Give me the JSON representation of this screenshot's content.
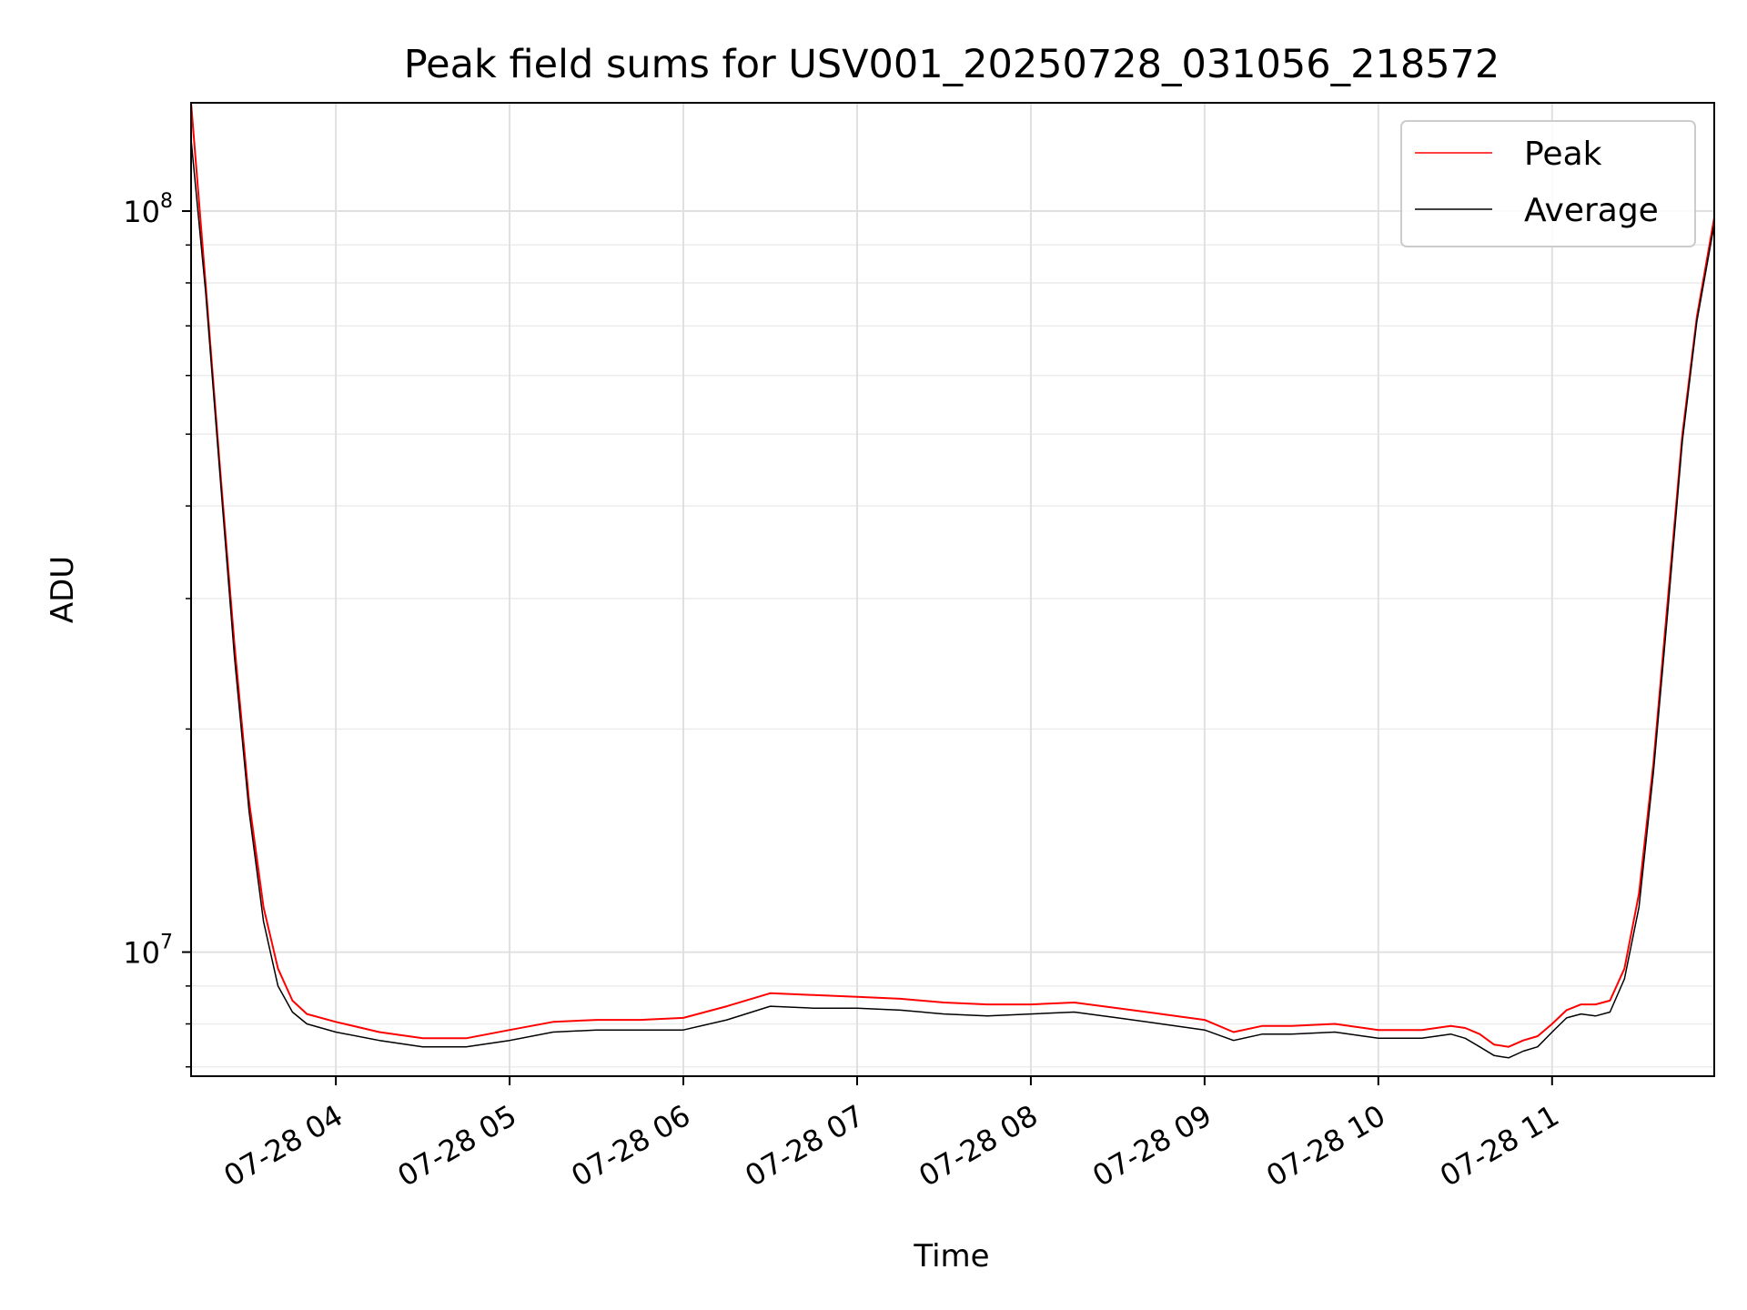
{
  "chart_data": {
    "type": "line",
    "title": "Peak field sums for USV001_20250728_031056_218572",
    "xlabel": "Time",
    "ylabel": "ADU",
    "yscale": "log",
    "grid": true,
    "legend_position": "top-right",
    "xlim": [
      "2025-07-28 03:10",
      "2025-07-28 11:56"
    ],
    "ylim": [
      6800000,
      140000000
    ],
    "x_ticks": [
      {
        "value": "2025-07-28 04:00",
        "label": "07-28 04"
      },
      {
        "value": "2025-07-28 05:00",
        "label": "07-28 05"
      },
      {
        "value": "2025-07-28 06:00",
        "label": "07-28 06"
      },
      {
        "value": "2025-07-28 07:00",
        "label": "07-28 07"
      },
      {
        "value": "2025-07-28 08:00",
        "label": "07-28 08"
      },
      {
        "value": "2025-07-28 09:00",
        "label": "07-28 09"
      },
      {
        "value": "2025-07-28 10:00",
        "label": "07-28 10"
      },
      {
        "value": "2025-07-28 11:00",
        "label": "07-28 11"
      }
    ],
    "y_ticks": [
      {
        "value": 10000000,
        "base": "10",
        "exp": "7"
      },
      {
        "value": 100000000,
        "base": "10",
        "exp": "8"
      }
    ],
    "series": [
      {
        "name": "Peak",
        "color": "#ff0000",
        "x": [
          "2025-07-28 03:10",
          "2025-07-28 03:15",
          "2025-07-28 03:20",
          "2025-07-28 03:25",
          "2025-07-28 03:30",
          "2025-07-28 03:35",
          "2025-07-28 03:40",
          "2025-07-28 03:45",
          "2025-07-28 03:50",
          "2025-07-28 04:00",
          "2025-07-28 04:15",
          "2025-07-28 04:30",
          "2025-07-28 04:45",
          "2025-07-28 05:00",
          "2025-07-28 05:15",
          "2025-07-28 05:30",
          "2025-07-28 05:45",
          "2025-07-28 06:00",
          "2025-07-28 06:15",
          "2025-07-28 06:30",
          "2025-07-28 06:45",
          "2025-07-28 07:00",
          "2025-07-28 07:15",
          "2025-07-28 07:30",
          "2025-07-28 07:45",
          "2025-07-28 08:00",
          "2025-07-28 08:15",
          "2025-07-28 08:30",
          "2025-07-28 08:45",
          "2025-07-28 09:00",
          "2025-07-28 09:10",
          "2025-07-28 09:20",
          "2025-07-28 09:30",
          "2025-07-28 09:45",
          "2025-07-28 10:00",
          "2025-07-28 10:15",
          "2025-07-28 10:25",
          "2025-07-28 10:30",
          "2025-07-28 10:35",
          "2025-07-28 10:40",
          "2025-07-28 10:45",
          "2025-07-28 10:50",
          "2025-07-28 10:55",
          "2025-07-28 11:00",
          "2025-07-28 11:05",
          "2025-07-28 11:10",
          "2025-07-28 11:15",
          "2025-07-28 11:20",
          "2025-07-28 11:25",
          "2025-07-28 11:30",
          "2025-07-28 11:35",
          "2025-07-28 11:40",
          "2025-07-28 11:45",
          "2025-07-28 11:50",
          "2025-07-28 11:56"
        ],
        "y": [
          140000000,
          80000000,
          45000000,
          26000000,
          16000000,
          11500000,
          9500000,
          8600000,
          8250000,
          8050000,
          7800000,
          7650000,
          7650000,
          7850000,
          8050000,
          8100000,
          8100000,
          8150000,
          8450000,
          8800000,
          8750000,
          8700000,
          8650000,
          8550000,
          8500000,
          8500000,
          8550000,
          8400000,
          8250000,
          8100000,
          7800000,
          7950000,
          7950000,
          8000000,
          7850000,
          7850000,
          7950000,
          7900000,
          7750000,
          7500000,
          7450000,
          7600000,
          7700000,
          8000000,
          8350000,
          8500000,
          8500000,
          8600000,
          9500000,
          12000000,
          18000000,
          30000000,
          50000000,
          72000000,
          98000000
        ]
      },
      {
        "name": "Average",
        "color": "#000000",
        "x": [
          "2025-07-28 03:10",
          "2025-07-28 03:15",
          "2025-07-28 03:20",
          "2025-07-28 03:25",
          "2025-07-28 03:30",
          "2025-07-28 03:35",
          "2025-07-28 03:40",
          "2025-07-28 03:45",
          "2025-07-28 03:50",
          "2025-07-28 04:00",
          "2025-07-28 04:15",
          "2025-07-28 04:30",
          "2025-07-28 04:45",
          "2025-07-28 05:00",
          "2025-07-28 05:15",
          "2025-07-28 05:30",
          "2025-07-28 05:45",
          "2025-07-28 06:00",
          "2025-07-28 06:15",
          "2025-07-28 06:30",
          "2025-07-28 06:45",
          "2025-07-28 07:00",
          "2025-07-28 07:15",
          "2025-07-28 07:30",
          "2025-07-28 07:45",
          "2025-07-28 08:00",
          "2025-07-28 08:15",
          "2025-07-28 08:30",
          "2025-07-28 08:45",
          "2025-07-28 09:00",
          "2025-07-28 09:10",
          "2025-07-28 09:20",
          "2025-07-28 09:30",
          "2025-07-28 09:45",
          "2025-07-28 10:00",
          "2025-07-28 10:15",
          "2025-07-28 10:25",
          "2025-07-28 10:30",
          "2025-07-28 10:35",
          "2025-07-28 10:40",
          "2025-07-28 10:45",
          "2025-07-28 10:50",
          "2025-07-28 10:55",
          "2025-07-28 11:00",
          "2025-07-28 11:05",
          "2025-07-28 11:10",
          "2025-07-28 11:15",
          "2025-07-28 11:20",
          "2025-07-28 11:25",
          "2025-07-28 11:30",
          "2025-07-28 11:35",
          "2025-07-28 11:40",
          "2025-07-28 11:45",
          "2025-07-28 11:50",
          "2025-07-28 11:56"
        ],
        "y": [
          125000000,
          78000000,
          44000000,
          25000000,
          15500000,
          11000000,
          9000000,
          8300000,
          8000000,
          7800000,
          7600000,
          7450000,
          7450000,
          7600000,
          7800000,
          7850000,
          7850000,
          7850000,
          8100000,
          8450000,
          8400000,
          8400000,
          8350000,
          8250000,
          8200000,
          8250000,
          8300000,
          8150000,
          8000000,
          7850000,
          7600000,
          7750000,
          7750000,
          7800000,
          7650000,
          7650000,
          7750000,
          7650000,
          7450000,
          7250000,
          7200000,
          7350000,
          7450000,
          7800000,
          8150000,
          8250000,
          8200000,
          8300000,
          9200000,
          11500000,
          17500000,
          29000000,
          49000000,
          71000000,
          96000000
        ]
      }
    ]
  }
}
